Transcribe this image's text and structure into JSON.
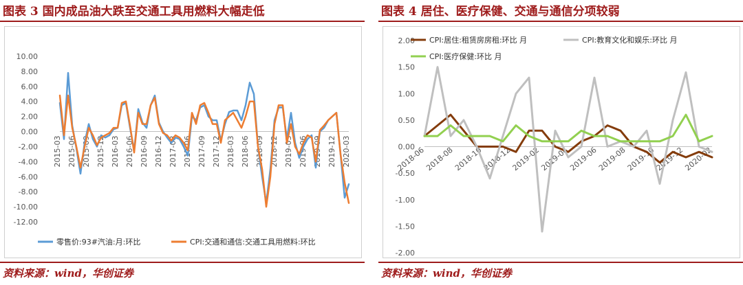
{
  "left": {
    "title": "图表 3   国内成品油大跌至交通工具用燃料大幅走低",
    "source": "资料来源：wind，华创证券"
  },
  "right": {
    "title": "图表 4   居住、医疗保健、交通与通信分项较弱",
    "source": "资料来源：wind，华创证券"
  },
  "chart_data": [
    {
      "type": "line",
      "title": "",
      "ylim": [
        -12,
        10
      ],
      "yticks": [
        "10.00",
        "8.00",
        "6.00",
        "4.00",
        "2.00",
        "0.00",
        "-2.00",
        "-4.00",
        "-6.00",
        "-8.00",
        "-10.00",
        "-12.00"
      ],
      "xticks": [
        "2015-03",
        "2015-06",
        "2015-09",
        "2015-12",
        "2016-03",
        "2016-06",
        "2016-09",
        "2016-12",
        "2017-03",
        "2017-06",
        "2017-09",
        "2017-12",
        "2018-03",
        "2018-06",
        "2018-09",
        "2018-12",
        "2019-03",
        "2019-06",
        "2019-09",
        "2019-12",
        "2020-03"
      ],
      "legend": "bottom",
      "grid": false,
      "series": [
        {
          "name": "零售价:93#汽油:月:环比",
          "color": "#5b9bd5",
          "values": [
            3.8,
            -1.0,
            7.8,
            0.8,
            -2.2,
            -5.6,
            -1.5,
            1.0,
            -1.0,
            -2.0,
            -0.5,
            -0.8,
            -0.5,
            0.3,
            0.5,
            3.5,
            3.8,
            0.5,
            -2.5,
            3.0,
            1.2,
            0.5,
            3.5,
            4.8,
            1.2,
            0,
            -0.8,
            -1.5,
            -0.8,
            -1.0,
            -2.0,
            -3.2,
            2.0,
            1.5,
            3.2,
            3.5,
            2.0,
            1.5,
            1.5,
            -1.2,
            1.0,
            2.6,
            2.8,
            2.8,
            1.5,
            3.5,
            6.5,
            5.0,
            -2.0,
            -6.0,
            -9.5,
            -5.0,
            1.5,
            3.2,
            3.2,
            -1.0,
            2.5,
            -1.5,
            -3.5,
            -2.0,
            -1.0,
            -0.5,
            -4.8,
            0.0,
            0.5,
            1.5,
            2.0,
            2.5,
            -3.0,
            -8.8,
            -7.0
          ]
        },
        {
          "name": "CPI:交通和通信:交通工具用燃料:环比",
          "color": "#ed7d31",
          "values": [
            4.8,
            -0.5,
            4.8,
            0.5,
            -2.0,
            -4.8,
            -2.0,
            0.5,
            -0.5,
            -1.8,
            -0.8,
            -0.5,
            -0.2,
            0.5,
            0.5,
            3.8,
            4.0,
            0.8,
            -2.8,
            2.5,
            1.0,
            1.0,
            3.5,
            4.5,
            1.0,
            -0.2,
            -0.5,
            -1.2,
            -0.5,
            -0.8,
            -1.5,
            -2.5,
            2.5,
            1.0,
            3.5,
            3.8,
            2.5,
            1.0,
            1.0,
            -1.5,
            1.5,
            2.0,
            2.5,
            1.5,
            0.5,
            2.0,
            4.0,
            4.0,
            -2.0,
            -5.0,
            -10.0,
            -6.0,
            1.0,
            3.5,
            3.5,
            -1.5,
            1.0,
            -2.0,
            -3.0,
            -1.5,
            -0.5,
            -0.8,
            -4.0,
            0.2,
            0.8,
            1.5,
            2.0,
            2.5,
            -3.0,
            -6.8,
            -9.5
          ]
        }
      ]
    },
    {
      "type": "line",
      "title": "",
      "ylim": [
        -2.0,
        2.0
      ],
      "yticks": [
        "2.00",
        "1.50",
        "1.00",
        "0.50",
        "0.00",
        "-0.50",
        "-1.00",
        "-1.50",
        "-2.00"
      ],
      "xticks": [
        "2018-06",
        "2018-08",
        "2018-10",
        "2018-12",
        "2019-02",
        "2019-04",
        "2019-06",
        "2019-08",
        "2019-10",
        "2019-12",
        "2020-02"
      ],
      "legend": "top",
      "grid": false,
      "series": [
        {
          "name": "CPI:居住:租赁房房租:环比 月",
          "color": "#843c0c",
          "values": [
            0.2,
            0.4,
            0.6,
            0.3,
            0.0,
            0.0,
            0.0,
            -0.1,
            0.3,
            0.3,
            0.0,
            -0.1,
            0.1,
            0.2,
            0.4,
            0.3,
            0.0,
            -0.1,
            -0.3,
            -0.1,
            -0.2,
            -0.1,
            -0.2
          ]
        },
        {
          "name": "CPI:教育文化和娱乐:环比 月",
          "color": "#bfbfbf",
          "values": [
            0.2,
            1.5,
            0.2,
            0.5,
            0.0,
            -0.6,
            0.2,
            1.0,
            1.3,
            -1.6,
            0.3,
            -0.2,
            0.0,
            1.3,
            0.0,
            0.1,
            0.0,
            0.3,
            -0.7,
            0.5,
            1.4,
            0.0,
            -0.1
          ]
        },
        {
          "name": "CPI:医疗保健:环比 月",
          "color": "#92d050",
          "values": [
            0.2,
            0.2,
            0.4,
            0.2,
            0.2,
            0.2,
            0.1,
            0.4,
            0.2,
            0.1,
            0.1,
            0.1,
            0.3,
            0.2,
            0.2,
            0.1,
            0.1,
            0.1,
            0.1,
            0.2,
            0.6,
            0.1,
            0.2
          ]
        }
      ]
    }
  ]
}
